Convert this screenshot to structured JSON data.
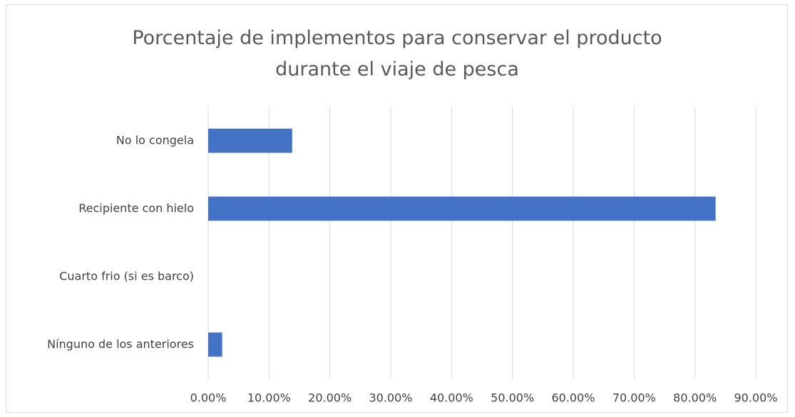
{
  "chart_data": {
    "type": "bar",
    "orientation": "horizontal",
    "title": "Porcentaje de implementos para conservar el producto durante el viaje de pesca",
    "categories": [
      "No lo congela",
      "Recipiente con hielo",
      "Cuarto frio (si es barco)",
      "Nínguno de los anteriores"
    ],
    "values": [
      13.8,
      83.4,
      0,
      2.3
    ],
    "color": "#4472c4",
    "xlim": [
      0,
      90
    ],
    "xticks": [
      {
        "value": 0,
        "label": "0.00%"
      },
      {
        "value": 10,
        "label": "10.00%"
      },
      {
        "value": 20,
        "label": "20.00%"
      },
      {
        "value": 30,
        "label": "30.00%"
      },
      {
        "value": 40,
        "label": "40.00%"
      },
      {
        "value": 50,
        "label": "50.00%"
      },
      {
        "value": 60,
        "label": "60.00%"
      },
      {
        "value": 70,
        "label": "70.00%"
      },
      {
        "value": 80,
        "label": "80.00%"
      },
      {
        "value": 90,
        "label": "90.00%"
      }
    ],
    "grid": true
  }
}
